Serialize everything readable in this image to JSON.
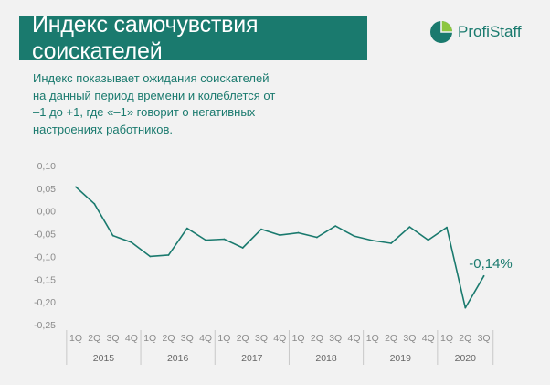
{
  "header": {
    "title": "Индекс самочувствия соискателей",
    "logo_text": "ProfiStaff",
    "logo_icon": "profistaff-logo-icon"
  },
  "subtitle": "Индекс показывает ожидания соискателей на данный период времени и колеблется от –1 до +1, где «–1» говорит о негативных настроениях работников.",
  "colors": {
    "accent": "#1a7a6e",
    "logo_light": "#8cc63f",
    "background": "#f2f2f2"
  },
  "chart_data": {
    "type": "line",
    "ylim": [
      -0.25,
      0.1
    ],
    "yticks": [
      "0,10",
      "0,05",
      "0,00",
      "-0,05",
      "-0,10",
      "-0,15",
      "-0,20",
      "-0,25"
    ],
    "ytick_values": [
      0.1,
      0.05,
      0.0,
      -0.05,
      -0.1,
      -0.15,
      -0.2,
      -0.25
    ],
    "categories": [
      "1Q",
      "2Q",
      "3Q",
      "4Q",
      "1Q",
      "2Q",
      "3Q",
      "4Q",
      "1Q",
      "2Q",
      "3Q",
      "4Q",
      "1Q",
      "2Q",
      "3Q",
      "4Q",
      "1Q",
      "2Q",
      "3Q",
      "4Q",
      "1Q",
      "2Q",
      "3Q"
    ],
    "years": [
      "2015",
      "2016",
      "2017",
      "2018",
      "2019",
      "2020"
    ],
    "year_quarters": [
      4,
      4,
      4,
      4,
      4,
      3
    ],
    "grid": false,
    "series": [
      {
        "values": [
          0.053,
          0.016,
          -0.054,
          -0.069,
          -0.1,
          -0.097,
          -0.038,
          -0.064,
          -0.062,
          -0.081,
          -0.04,
          -0.053,
          -0.048,
          -0.058,
          -0.033,
          -0.055,
          -0.065,
          -0.071,
          -0.035,
          -0.064,
          -0.036,
          -0.213,
          -0.143
        ]
      }
    ],
    "annotation": "-0,14%"
  }
}
